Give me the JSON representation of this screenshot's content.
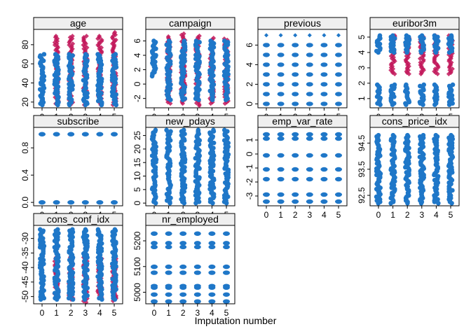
{
  "figure": {
    "xlabel": "Imputation number",
    "observed_color": "#1F77C8",
    "imputed_color": "#C2185B"
  },
  "chart_data": [
    {
      "type": "scatter",
      "title": "age",
      "x_ticks": [
        "0",
        "1",
        "2",
        "3",
        "4",
        "5"
      ],
      "y_ticks": [
        "20",
        "40",
        "60",
        "80"
      ],
      "ylim": [
        14,
        96
      ],
      "observed": [
        [
          0,
          17,
          70
        ],
        [
          1,
          17,
          70
        ],
        [
          2,
          17,
          70
        ],
        [
          3,
          17,
          70
        ],
        [
          4,
          17,
          70
        ],
        [
          5,
          17,
          70
        ]
      ],
      "imputed": [
        [
          1,
          17,
          89
        ],
        [
          2,
          17,
          89
        ],
        [
          3,
          17,
          89
        ],
        [
          4,
          17,
          89
        ],
        [
          5,
          17,
          93
        ]
      ]
    },
    {
      "type": "scatter",
      "title": "campaign",
      "x_ticks": [
        "0",
        "1",
        "2",
        "3",
        "4",
        "5"
      ],
      "y_ticks": [
        "-2",
        "0",
        "2",
        "4",
        "6"
      ],
      "ylim": [
        -3.3,
        7.6
      ],
      "observed": [
        [
          0,
          1.1,
          6.0
        ],
        [
          1,
          -2.2,
          6.0
        ],
        [
          2,
          -2.2,
          6.0
        ],
        [
          3,
          -2.2,
          6.0
        ],
        [
          4,
          -2.2,
          6.0
        ],
        [
          5,
          -2.2,
          6.0
        ]
      ],
      "imputed": [
        [
          1,
          -2.7,
          6.6
        ],
        [
          2,
          -2.7,
          7.0
        ],
        [
          3,
          -3.0,
          6.7
        ],
        [
          4,
          -2.7,
          6.4
        ],
        [
          5,
          -2.7,
          6.3
        ]
      ]
    },
    {
      "type": "scatter",
      "title": "previous",
      "x_ticks": [
        "0",
        "1",
        "2",
        "3",
        "4",
        "5"
      ],
      "y_ticks": [
        "0",
        "2",
        "4",
        "6"
      ],
      "ylim": [
        -0.4,
        7.6
      ],
      "observed_levels": [
        0,
        1,
        2,
        3,
        4,
        5,
        6
      ],
      "observed_top": 7
    },
    {
      "type": "scatter",
      "title": "euribor3m",
      "x_ticks": [
        "0",
        "1",
        "2",
        "3",
        "4",
        "5"
      ],
      "y_ticks": [
        "1",
        "2",
        "3",
        "4",
        "5"
      ],
      "ylim": [
        0.4,
        5.5
      ],
      "observed": [
        [
          0,
          0.6,
          1.9
        ],
        [
          0,
          4.0,
          5.1
        ],
        [
          1,
          0.6,
          1.9
        ],
        [
          1,
          4.0,
          5.1
        ],
        [
          2,
          0.6,
          1.9
        ],
        [
          2,
          4.0,
          5.1
        ],
        [
          3,
          0.6,
          1.9
        ],
        [
          3,
          4.0,
          5.1
        ],
        [
          4,
          0.6,
          1.9
        ],
        [
          4,
          4.0,
          5.1
        ],
        [
          5,
          0.6,
          1.9
        ],
        [
          5,
          4.0,
          5.1
        ]
      ],
      "imputed": [
        [
          1,
          2.6,
          5.1
        ],
        [
          2,
          2.6,
          5.1
        ],
        [
          3,
          2.6,
          5.1
        ],
        [
          4,
          2.6,
          5.1
        ],
        [
          5,
          2.6,
          5.1
        ]
      ]
    },
    {
      "type": "scatter",
      "title": "subscribe",
      "x_ticks": [
        "0",
        "1",
        "2",
        "3",
        "4",
        "5"
      ],
      "y_ticks": [
        "0.0",
        "0.4",
        "0.8"
      ],
      "ylim": [
        -0.05,
        1.1
      ],
      "observed_levels": [
        0,
        1
      ]
    },
    {
      "type": "scatter",
      "title": "new_pdays",
      "x_ticks": [
        "0",
        "1",
        "2",
        "3",
        "4",
        "5"
      ],
      "y_ticks": [
        "0",
        "5",
        "10",
        "15",
        "20",
        "25"
      ],
      "ylim": [
        -1,
        28
      ],
      "observed": [
        [
          0,
          0,
          27
        ],
        [
          1,
          0,
          27
        ],
        [
          2,
          0,
          27
        ],
        [
          3,
          0,
          27
        ],
        [
          4,
          0,
          27
        ],
        [
          5,
          0,
          27
        ]
      ]
    },
    {
      "type": "scatter",
      "title": "emp_var_rate",
      "x_ticks": [
        "0",
        "1",
        "2",
        "3",
        "4",
        "5"
      ],
      "y_ticks": [
        "-3",
        "-2",
        "-1",
        "0",
        "1"
      ],
      "ylim": [
        -3.7,
        1.9
      ],
      "observed_levels": [
        -3.4,
        -2.9,
        -1.8,
        -1.1,
        -0.1,
        1.1,
        1.4
      ]
    },
    {
      "type": "scatter",
      "title": "cons_price_idx",
      "x_ticks": [
        "0",
        "1",
        "2",
        "3",
        "4",
        "5"
      ],
      "y_ticks": [
        "92.5",
        "93.5",
        "94.5"
      ],
      "ylim": [
        92.1,
        95.1
      ],
      "observed": [
        [
          0,
          92.2,
          94.8
        ],
        [
          1,
          92.2,
          94.8
        ],
        [
          2,
          92.2,
          94.8
        ],
        [
          3,
          92.2,
          94.8
        ],
        [
          4,
          92.2,
          94.8
        ],
        [
          5,
          92.2,
          94.8
        ]
      ]
    },
    {
      "type": "scatter",
      "title": "cons_conf_idx",
      "x_ticks": [
        "0",
        "1",
        "2",
        "3",
        "4",
        "5"
      ],
      "y_ticks": [
        "-50",
        "-45",
        "-40",
        "-35",
        "-30"
      ],
      "ylim": [
        -52.5,
        -25.5
      ],
      "observed": [
        [
          0,
          -51,
          -26.9
        ],
        [
          1,
          -51,
          -26.9
        ],
        [
          2,
          -51,
          -26.9
        ],
        [
          3,
          -51,
          -26.9
        ],
        [
          4,
          -51,
          -26.9
        ],
        [
          5,
          -51,
          -26.9
        ]
      ],
      "imputed": [
        [
          1,
          -49.5,
          -36.5
        ],
        [
          2,
          -51,
          -36.5
        ],
        [
          3,
          -52,
          -36.5
        ],
        [
          4,
          -50.5,
          -36.5
        ],
        [
          5,
          -51.5,
          -36.5
        ]
      ]
    },
    {
      "type": "scatter",
      "title": "nr_employed",
      "x_ticks": [
        "0",
        "1",
        "2",
        "3",
        "4",
        "5"
      ],
      "y_ticks": [
        "5000",
        "5100",
        "5200"
      ],
      "ylim": [
        4955,
        5260
      ],
      "observed_levels": [
        4964,
        4991,
        5018,
        5024,
        5076,
        5099,
        5176,
        5191,
        5228
      ]
    }
  ]
}
